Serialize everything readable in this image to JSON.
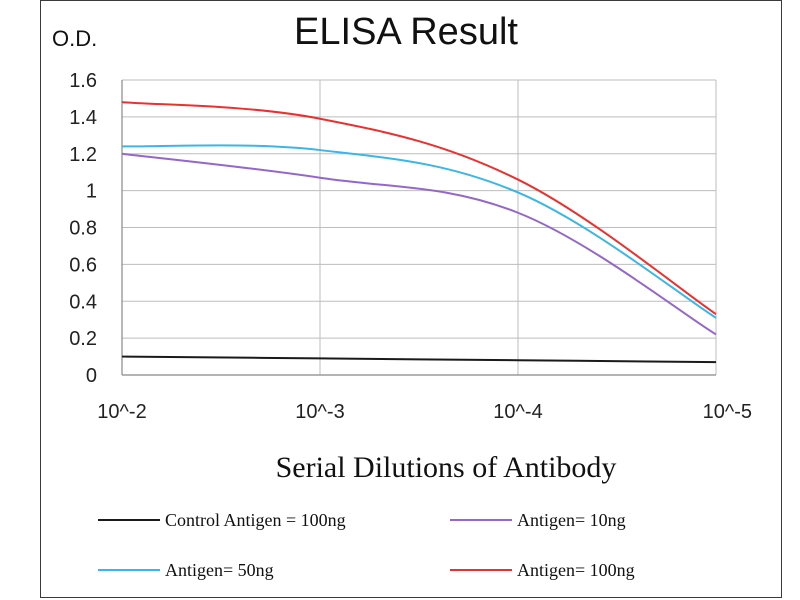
{
  "chart_data": {
    "type": "line",
    "title": "ELISA Result",
    "ylabel": "O.D.",
    "xlabel": "Serial Dilutions  of Antibody",
    "categories": [
      "10^-2",
      "10^-3",
      "10^-4",
      "10^-5"
    ],
    "x": [
      0.01,
      0.001,
      0.0001,
      1e-05
    ],
    "x_scale": "log (decreasing)",
    "ylim": [
      0,
      1.6
    ],
    "yticks": [
      0,
      0.2,
      0.4,
      0.6,
      0.8,
      1,
      1.2,
      1.4,
      1.6
    ],
    "ytick_labels": [
      "0",
      "0.2",
      "0.4",
      "0.6",
      "0.8",
      "1",
      "1.2",
      "1.4",
      "1.6"
    ],
    "grid": "vertical and horizontal gridlines",
    "legend_position": "bottom",
    "series": [
      {
        "name": "Control Antigen = 100ng",
        "color": "#1a1a1a",
        "values": [
          0.1,
          0.09,
          0.08,
          0.07
        ]
      },
      {
        "name": "Antigen= 10ng",
        "color": "#9467c9",
        "values": [
          1.2,
          1.07,
          0.88,
          0.22
        ]
      },
      {
        "name": "Antigen= 50ng",
        "color": "#3bb6e6",
        "values": [
          1.24,
          1.22,
          0.99,
          0.31
        ]
      },
      {
        "name": "Antigen= 100ng",
        "color": "#e8322f",
        "values": [
          1.48,
          1.39,
          1.06,
          0.33
        ]
      }
    ]
  }
}
